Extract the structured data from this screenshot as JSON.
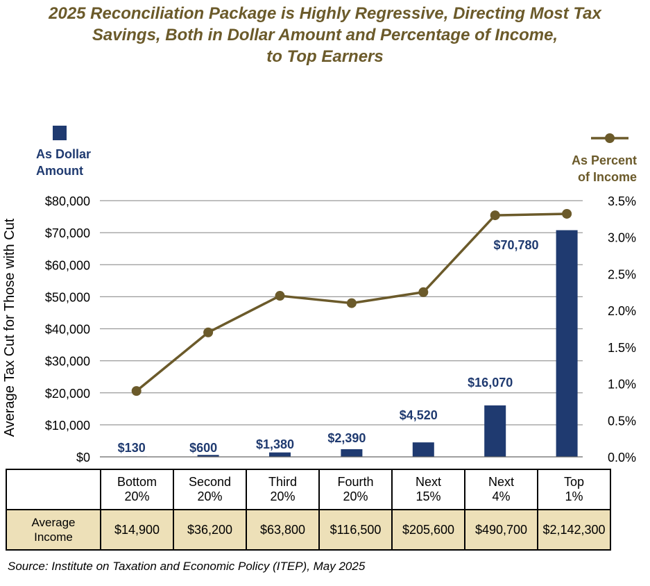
{
  "title_lines": [
    "2025 Reconciliation Package is Highly Regressive, Directing Most Tax",
    "Savings, Both in Dollar Amount and Percentage of Income,",
    "to Top Earners"
  ],
  "source": "Source: Institute on Taxation and Economic Policy (ITEP), May 2025",
  "colors": {
    "bar": "#1f3a70",
    "line": "#6b5a2a",
    "grid": "#999999",
    "title": "#6b5a2a",
    "income_row": "#ede0b8"
  },
  "chart_data": {
    "type": "bar+line",
    "categories": [
      [
        "Bottom",
        "20%"
      ],
      [
        "Second",
        "20%"
      ],
      [
        "Third",
        "20%"
      ],
      [
        "Fourth",
        "20%"
      ],
      [
        "Next",
        "15%"
      ],
      [
        "Next",
        "4%"
      ],
      [
        "Top",
        "1%"
      ]
    ],
    "series": [
      {
        "name": "As Dollar Amount",
        "name_lines": [
          "As Dollar",
          "Amount"
        ],
        "type": "bar",
        "axis": "left",
        "values": [
          130,
          600,
          1380,
          2390,
          4520,
          16070,
          70780
        ],
        "labels": [
          "$130",
          "$600",
          "$1,380",
          "$2,390",
          "$4,520",
          "$16,070",
          "$70,780"
        ]
      },
      {
        "name": "As Percent of Income",
        "name_lines": [
          "As Percent",
          "of Income"
        ],
        "type": "line",
        "axis": "right",
        "values": [
          0.9,
          1.7,
          2.2,
          2.1,
          2.25,
          3.3,
          3.32
        ]
      }
    ],
    "ylabel": "Average Tax Cut for Those with Cut",
    "ylim_left": [
      0,
      80000
    ],
    "ylim_right": [
      0,
      3.5
    ],
    "left_ticks": [
      "$0",
      "$10,000",
      "$20,000",
      "$30,000",
      "$40,000",
      "$50,000",
      "$60,000",
      "$70,000",
      "$80,000"
    ],
    "right_ticks": [
      "0.0%",
      "0.5%",
      "1.0%",
      "1.5%",
      "2.0%",
      "2.5%",
      "3.0%",
      "3.5%"
    ],
    "grid": true,
    "legend_placement": "top-left and top-right"
  },
  "income_table": {
    "row_label": [
      "Average",
      "Income"
    ],
    "values": [
      "$14,900",
      "$36,200",
      "$63,800",
      "$116,500",
      "$205,600",
      "$490,700",
      "$2,142,300"
    ]
  }
}
